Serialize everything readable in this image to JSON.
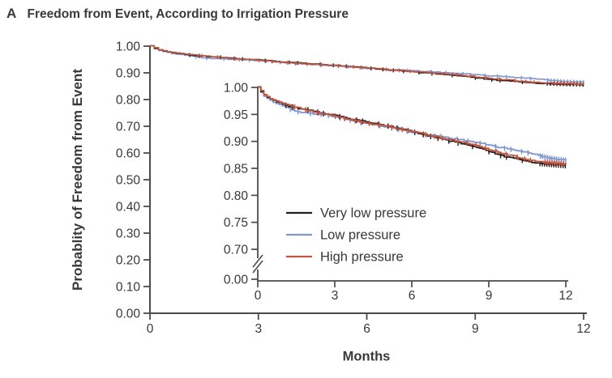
{
  "title": {
    "panel": "A",
    "text": "Freedom from Event, According to Irrigation Pressure"
  },
  "chart_data": {
    "type": "line",
    "subtype": "kaplan-meier-step",
    "title": "Freedom from Event, According to Irrigation Pressure",
    "xlabel": "Months",
    "ylabel": "Probablity of Freedom from Event",
    "grid": false,
    "censor_marks": true,
    "legend_position": "inside-inset-lower-center",
    "text_color": "#3a383a",
    "axis_color": "#4b4b4b",
    "axes": {
      "main": {
        "xlim": [
          0,
          12
        ],
        "ylim": [
          0,
          1
        ],
        "x_ticks": [
          "0",
          "3",
          "6",
          "9",
          "12"
        ],
        "y_ticks": [
          "1.00",
          "0.90",
          "0.80",
          "0.70",
          "0.60",
          "0.50",
          "0.40",
          "0.30",
          "0.20",
          "0.10",
          "0.00"
        ]
      },
      "inset": {
        "xlim": [
          0,
          12
        ],
        "ylim_shown": [
          0.7,
          1.0
        ],
        "y_break_to": 0,
        "x_ticks": [
          "0",
          "3",
          "6",
          "9",
          "12"
        ],
        "y_ticks": [
          "1.00",
          "0.95",
          "0.90",
          "0.85",
          "0.80",
          "0.75",
          "0.70",
          "0.00"
        ]
      }
    },
    "x": [
      0,
      0.25,
      0.5,
      1,
      1.5,
      2,
      2.5,
      3,
      3.5,
      4,
      4.5,
      5,
      5.5,
      6,
      6.5,
      7,
      7.5,
      8,
      8.5,
      9,
      9.5,
      10,
      10.5,
      11,
      11.5,
      12
    ],
    "series": [
      {
        "name": "Very low pressure",
        "color": "#1f1d1e",
        "y": [
          1.0,
          0.985,
          0.978,
          0.968,
          0.962,
          0.958,
          0.952,
          0.948,
          0.942,
          0.938,
          0.934,
          0.929,
          0.924,
          0.918,
          0.912,
          0.906,
          0.9,
          0.895,
          0.889,
          0.881,
          0.873,
          0.868,
          0.863,
          0.859,
          0.857,
          0.855
        ]
      },
      {
        "name": "Low pressure",
        "color": "#8098cf",
        "y": [
          1.0,
          0.983,
          0.975,
          0.965,
          0.955,
          0.952,
          0.95,
          0.946,
          0.94,
          0.935,
          0.931,
          0.927,
          0.922,
          0.917,
          0.913,
          0.91,
          0.906,
          0.902,
          0.898,
          0.893,
          0.888,
          0.884,
          0.879,
          0.873,
          0.868,
          0.865
        ]
      },
      {
        "name": "High pressure",
        "color": "#c4553e",
        "y": [
          1.0,
          0.986,
          0.979,
          0.97,
          0.963,
          0.957,
          0.951,
          0.947,
          0.941,
          0.936,
          0.932,
          0.928,
          0.923,
          0.919,
          0.913,
          0.908,
          0.903,
          0.898,
          0.893,
          0.885,
          0.878,
          0.872,
          0.866,
          0.862,
          0.86,
          0.858
        ]
      }
    ]
  }
}
